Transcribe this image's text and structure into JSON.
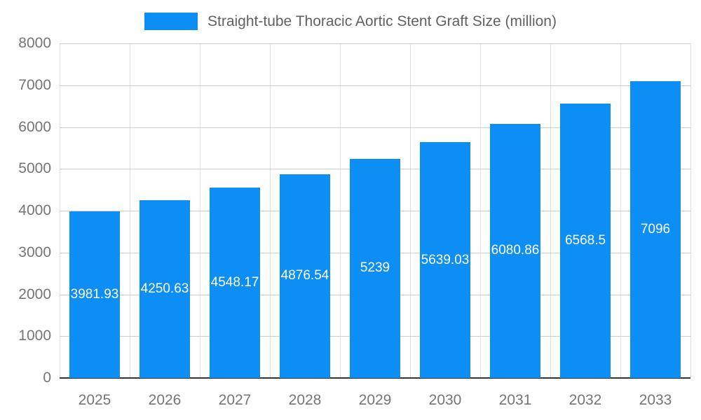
{
  "legend": {
    "label": "Straight-tube Thoracic Aortic Stent Graft Size (million)",
    "swatch_color": "#0d8ef5"
  },
  "chart_data": {
    "type": "bar",
    "title": "Straight-tube Thoracic Aortic Stent Graft Size (million)",
    "categories": [
      "2025",
      "2026",
      "2027",
      "2028",
      "2029",
      "2030",
      "2031",
      "2032",
      "2033"
    ],
    "values": [
      3981.93,
      4250.63,
      4548.17,
      4876.54,
      5239,
      5639.03,
      6080.86,
      6568.5,
      7096
    ],
    "labels": [
      "3981.93",
      "4250.63",
      "4548.17",
      "4876.54",
      "5239",
      "5639.03",
      "6080.86",
      "6568.5",
      "7096"
    ],
    "xlabel": "",
    "ylabel": "",
    "ylim": [
      0,
      8000
    ],
    "yticks": [
      0,
      1000,
      2000,
      3000,
      4000,
      5000,
      6000,
      7000,
      8000
    ],
    "bar_color": "#0d8ef5",
    "annotation_color": "#ffffff",
    "grid": true,
    "legend_position": "top"
  }
}
